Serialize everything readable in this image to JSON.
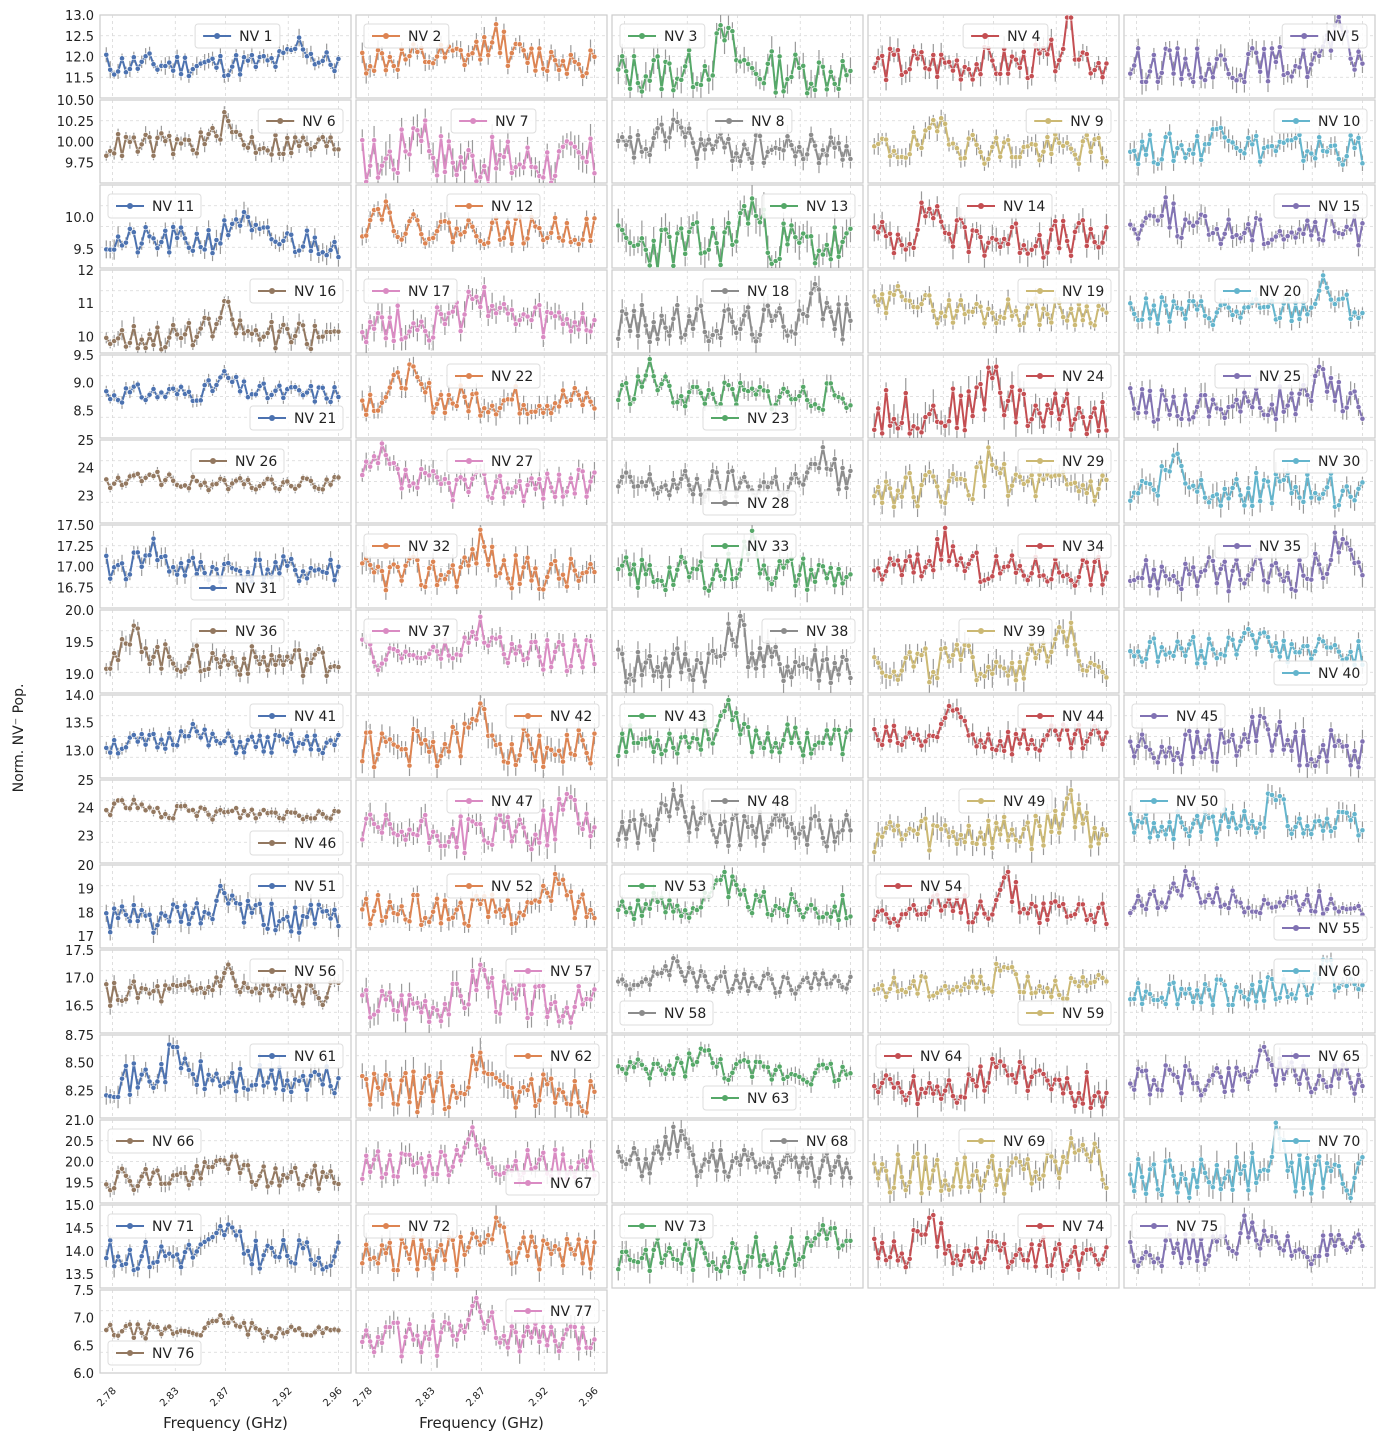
{
  "figure": {
    "ylabel": "Norm. NV⁻ Pop.",
    "xlabel": "Frequency (GHz)",
    "x_ticks": [
      "2.78",
      "2.83",
      "2.87",
      "2.92",
      "2.96"
    ],
    "n_points": 60,
    "x_range": [
      2.77,
      2.97
    ]
  },
  "colors": [
    "#4c72b0",
    "#dd8452",
    "#55a868",
    "#c44e52",
    "#8172b3",
    "#937860",
    "#da8bc3",
    "#8c8c8c",
    "#ccb974",
    "#64b5cd"
  ],
  "chart_data": {
    "type": "line",
    "layout": "77 small-multiple panels, 5 columns x 16 rows",
    "errorbars": true,
    "grid": true,
    "note_values": "per-panel values are estimated from the figure as peak frequency (GHz) on a noisy baseline",
    "panels": [
      {
        "name": "NV 1",
        "yticks": [
          "11.5",
          "12.0",
          "12.5",
          "13.0"
        ],
        "ylim": [
          11.0,
          13.0
        ],
        "base": 11.8,
        "amp": 0.7,
        "peak": 2.93,
        "legend": "top-center"
      },
      {
        "name": "NV 2",
        "yticks": [],
        "ylim": [
          0,
          1
        ],
        "base": 0.45,
        "amp": 0.45,
        "peak": 2.88,
        "legend": "top-left"
      },
      {
        "name": "NV 3",
        "yticks": [],
        "ylim": [
          0,
          1
        ],
        "base": 0.3,
        "amp": 0.6,
        "peak": 2.86,
        "legend": "top-left"
      },
      {
        "name": "NV 4",
        "yticks": [],
        "ylim": [
          0,
          1
        ],
        "base": 0.4,
        "amp": 0.5,
        "peak": 2.93,
        "legend": "top-center"
      },
      {
        "name": "NV 5",
        "yticks": [],
        "ylim": [
          0,
          1
        ],
        "base": 0.4,
        "amp": 0.5,
        "peak": 2.94,
        "legend": "top-right"
      },
      {
        "name": "NV 6",
        "yticks": [
          "9.75",
          "10.00",
          "10.25",
          "10.50"
        ],
        "ylim": [
          9.5,
          10.5
        ],
        "base": 9.95,
        "amp": 0.35,
        "peak": 2.87,
        "legend": "top-right"
      },
      {
        "name": "NV 7",
        "yticks": [],
        "ylim": [
          0,
          1
        ],
        "base": 0.25,
        "amp": 0.7,
        "peak": 2.82,
        "legend": "top-center"
      },
      {
        "name": "NV 8",
        "yticks": [],
        "ylim": [
          0,
          1
        ],
        "base": 0.4,
        "amp": 0.45,
        "peak": 2.82,
        "legend": "top-center"
      },
      {
        "name": "NV 9",
        "yticks": [],
        "ylim": [
          0,
          1
        ],
        "base": 0.4,
        "amp": 0.45,
        "peak": 2.83,
        "legend": "top-right"
      },
      {
        "name": "NV 10",
        "yticks": [],
        "ylim": [
          0,
          1
        ],
        "base": 0.4,
        "amp": 0.45,
        "peak": 2.85,
        "legend": "top-right"
      },
      {
        "name": "NV 11",
        "yticks": [
          "9.5",
          "10.0"
        ],
        "ylim": [
          9.2,
          10.5
        ],
        "base": 9.6,
        "amp": 0.55,
        "peak": 2.88,
        "legend": "top-left"
      },
      {
        "name": "NV 12",
        "yticks": [],
        "ylim": [
          0,
          1
        ],
        "base": 0.45,
        "amp": 0.4,
        "peak": 2.79,
        "legend": "top-center"
      },
      {
        "name": "NV 13",
        "yticks": [],
        "ylim": [
          0,
          1
        ],
        "base": 0.25,
        "amp": 0.7,
        "peak": 2.88,
        "legend": "top-right"
      },
      {
        "name": "NV 14",
        "yticks": [],
        "ylim": [
          0,
          1
        ],
        "base": 0.35,
        "amp": 0.55,
        "peak": 2.82,
        "legend": "top-center"
      },
      {
        "name": "NV 15",
        "yticks": [],
        "ylim": [
          0,
          1
        ],
        "base": 0.45,
        "amp": 0.45,
        "peak": 2.8,
        "legend": "top-right"
      },
      {
        "name": "NV 16",
        "yticks": [
          "10",
          "11",
          "12"
        ],
        "ylim": [
          9.5,
          12.0
        ],
        "base": 10.0,
        "amp": 1.0,
        "peak": 2.87,
        "legend": "top-right"
      },
      {
        "name": "NV 17",
        "yticks": [],
        "ylim": [
          0,
          1
        ],
        "base": 0.35,
        "amp": 0.55,
        "peak": 2.87,
        "legend": "top-left"
      },
      {
        "name": "NV 18",
        "yticks": [],
        "ylim": [
          0,
          1
        ],
        "base": 0.35,
        "amp": 0.55,
        "peak": 2.93,
        "legend": "top-center"
      },
      {
        "name": "NV 19",
        "yticks": [],
        "ylim": [
          0,
          1
        ],
        "base": 0.5,
        "amp": 0.4,
        "peak": 2.8,
        "legend": "top-right"
      },
      {
        "name": "NV 20",
        "yticks": [],
        "ylim": [
          0,
          1
        ],
        "base": 0.5,
        "amp": 0.4,
        "peak": 2.93,
        "legend": "top-center"
      },
      {
        "name": "NV 21",
        "yticks": [
          "8.5",
          "9.0",
          "9.5"
        ],
        "ylim": [
          8.0,
          9.5
        ],
        "base": 8.8,
        "amp": 0.4,
        "peak": 2.87,
        "legend": "bottom-right"
      },
      {
        "name": "NV 22",
        "yticks": [],
        "ylim": [
          0,
          1
        ],
        "base": 0.45,
        "amp": 0.45,
        "peak": 2.81,
        "legend": "top-center"
      },
      {
        "name": "NV 23",
        "yticks": [],
        "ylim": [
          0,
          1
        ],
        "base": 0.5,
        "amp": 0.4,
        "peak": 2.8,
        "legend": "bottom-center"
      },
      {
        "name": "NV 24",
        "yticks": [],
        "ylim": [
          0,
          1
        ],
        "base": 0.3,
        "amp": 0.65,
        "peak": 2.87,
        "legend": "top-right"
      },
      {
        "name": "NV 25",
        "yticks": [],
        "ylim": [
          0,
          1
        ],
        "base": 0.4,
        "amp": 0.5,
        "peak": 2.93,
        "legend": "top-center"
      },
      {
        "name": "NV 26",
        "yticks": [
          "23",
          "24",
          "25"
        ],
        "ylim": [
          22.0,
          25.0
        ],
        "base": 23.4,
        "amp": 0.6,
        "peak": 2.81,
        "legend": "top-center"
      },
      {
        "name": "NV 27",
        "yticks": [],
        "ylim": [
          0,
          1
        ],
        "base": 0.45,
        "amp": 0.45,
        "peak": 2.79,
        "legend": "top-center"
      },
      {
        "name": "NV 28",
        "yticks": [],
        "ylim": [
          0,
          1
        ],
        "base": 0.45,
        "amp": 0.45,
        "peak": 2.94,
        "legend": "bottom-center"
      },
      {
        "name": "NV 29",
        "yticks": [],
        "ylim": [
          0,
          1
        ],
        "base": 0.4,
        "amp": 0.5,
        "peak": 2.87,
        "legend": "top-right"
      },
      {
        "name": "NV 30",
        "yticks": [],
        "ylim": [
          0,
          1
        ],
        "base": 0.4,
        "amp": 0.5,
        "peak": 2.81,
        "legend": "top-right"
      },
      {
        "name": "NV 31",
        "yticks": [
          "16.75",
          "17.00",
          "17.25",
          "17.50"
        ],
        "ylim": [
          16.5,
          17.5
        ],
        "base": 16.95,
        "amp": 0.4,
        "peak": 2.81,
        "legend": "bottom-center"
      },
      {
        "name": "NV 32",
        "yticks": [],
        "ylim": [
          0,
          1
        ],
        "base": 0.4,
        "amp": 0.5,
        "peak": 2.87,
        "legend": "top-left"
      },
      {
        "name": "NV 33",
        "yticks": [],
        "ylim": [
          0,
          1
        ],
        "base": 0.4,
        "amp": 0.5,
        "peak": 2.88,
        "legend": "top-center"
      },
      {
        "name": "NV 34",
        "yticks": [],
        "ylim": [
          0,
          1
        ],
        "base": 0.45,
        "amp": 0.45,
        "peak": 2.83,
        "legend": "top-right"
      },
      {
        "name": "NV 35",
        "yticks": [],
        "ylim": [
          0,
          1
        ],
        "base": 0.4,
        "amp": 0.5,
        "peak": 2.94,
        "legend": "top-center"
      },
      {
        "name": "NV 36",
        "yticks": [
          "19.0",
          "19.5",
          "20.0"
        ],
        "ylim": [
          18.7,
          20.0
        ],
        "base": 19.2,
        "amp": 0.55,
        "peak": 2.8,
        "legend": "top-center"
      },
      {
        "name": "NV 37",
        "yticks": [],
        "ylim": [
          0,
          1
        ],
        "base": 0.45,
        "amp": 0.45,
        "peak": 2.87,
        "legend": "top-left"
      },
      {
        "name": "NV 38",
        "yticks": [],
        "ylim": [
          0,
          1
        ],
        "base": 0.35,
        "amp": 0.6,
        "peak": 2.87,
        "legend": "top-right"
      },
      {
        "name": "NV 39",
        "yticks": [],
        "ylim": [
          0,
          1
        ],
        "base": 0.35,
        "amp": 0.55,
        "peak": 2.93,
        "legend": "top-center"
      },
      {
        "name": "NV 40",
        "yticks": [],
        "ylim": [
          0,
          1
        ],
        "base": 0.5,
        "amp": 0.4,
        "peak": 2.87,
        "legend": "bottom-right"
      },
      {
        "name": "NV 41",
        "yticks": [
          "13.0",
          "13.5",
          "14.0"
        ],
        "ylim": [
          12.5,
          14.0
        ],
        "base": 13.1,
        "amp": 0.45,
        "peak": 2.84,
        "legend": "top-right"
      },
      {
        "name": "NV 42",
        "yticks": [],
        "ylim": [
          0,
          1
        ],
        "base": 0.35,
        "amp": 0.55,
        "peak": 2.87,
        "legend": "top-right"
      },
      {
        "name": "NV 43",
        "yticks": [],
        "ylim": [
          0,
          1
        ],
        "base": 0.45,
        "amp": 0.45,
        "peak": 2.86,
        "legend": "top-left"
      },
      {
        "name": "NV 44",
        "yticks": [],
        "ylim": [
          0,
          1
        ],
        "base": 0.45,
        "amp": 0.45,
        "peak": 2.84,
        "legend": "top-right"
      },
      {
        "name": "NV 45",
        "yticks": [],
        "ylim": [
          0,
          1
        ],
        "base": 0.35,
        "amp": 0.55,
        "peak": 2.88,
        "legend": "top-left"
      },
      {
        "name": "NV 46",
        "yticks": [
          "23",
          "24",
          "25"
        ],
        "ylim": [
          22.0,
          25.0
        ],
        "base": 23.8,
        "amp": 0.6,
        "peak": 2.79,
        "legend": "bottom-right"
      },
      {
        "name": "NV 47",
        "yticks": [],
        "ylim": [
          0,
          1
        ],
        "base": 0.35,
        "amp": 0.55,
        "peak": 2.94,
        "legend": "top-center"
      },
      {
        "name": "NV 48",
        "yticks": [],
        "ylim": [
          0,
          1
        ],
        "base": 0.4,
        "amp": 0.5,
        "peak": 2.82,
        "legend": "top-center"
      },
      {
        "name": "NV 49",
        "yticks": [],
        "ylim": [
          0,
          1
        ],
        "base": 0.35,
        "amp": 0.55,
        "peak": 2.93,
        "legend": "top-center"
      },
      {
        "name": "NV 50",
        "yticks": [],
        "ylim": [
          0,
          1
        ],
        "base": 0.45,
        "amp": 0.45,
        "peak": 2.89,
        "legend": "top-left"
      },
      {
        "name": "NV 51",
        "yticks": [
          "17",
          "18",
          "19",
          "20"
        ],
        "ylim": [
          16.5,
          20.0
        ],
        "base": 17.7,
        "amp": 1.5,
        "peak": 2.87,
        "legend": "top-right"
      },
      {
        "name": "NV 52",
        "yticks": [],
        "ylim": [
          0,
          1
        ],
        "base": 0.45,
        "amp": 0.45,
        "peak": 2.93,
        "legend": "top-center"
      },
      {
        "name": "NV 53",
        "yticks": [],
        "ylim": [
          0,
          1
        ],
        "base": 0.5,
        "amp": 0.4,
        "peak": 2.86,
        "legend": "top-left"
      },
      {
        "name": "NV 54",
        "yticks": [],
        "ylim": [
          0,
          1
        ],
        "base": 0.45,
        "amp": 0.45,
        "peak": 2.88,
        "legend": "top-left"
      },
      {
        "name": "NV 55",
        "yticks": [],
        "ylim": [
          0,
          1
        ],
        "base": 0.55,
        "amp": 0.35,
        "peak": 2.82,
        "legend": "bottom-right"
      },
      {
        "name": "NV 56",
        "yticks": [
          "16.5",
          "17.0",
          "17.5"
        ],
        "ylim": [
          16.0,
          17.5
        ],
        "base": 16.7,
        "amp": 0.55,
        "peak": 2.87,
        "legend": "top-right"
      },
      {
        "name": "NV 57",
        "yticks": [],
        "ylim": [
          0,
          1
        ],
        "base": 0.35,
        "amp": 0.55,
        "peak": 2.87,
        "legend": "top-right"
      },
      {
        "name": "NV 58",
        "yticks": [],
        "ylim": [
          0,
          1
        ],
        "base": 0.6,
        "amp": 0.3,
        "peak": 2.82,
        "legend": "bottom-left"
      },
      {
        "name": "NV 59",
        "yticks": [],
        "ylim": [
          0,
          1
        ],
        "base": 0.55,
        "amp": 0.35,
        "peak": 2.88,
        "legend": "bottom-right"
      },
      {
        "name": "NV 60",
        "yticks": [],
        "ylim": [
          0,
          1
        ],
        "base": 0.5,
        "amp": 0.4,
        "peak": 2.93,
        "legend": "top-right"
      },
      {
        "name": "NV 61",
        "yticks": [
          "8.25",
          "8.50",
          "8.75"
        ],
        "ylim": [
          8.0,
          8.75
        ],
        "base": 8.33,
        "amp": 0.35,
        "peak": 2.83,
        "legend": "top-right"
      },
      {
        "name": "NV 62",
        "yticks": [],
        "ylim": [
          0,
          1
        ],
        "base": 0.3,
        "amp": 0.6,
        "peak": 2.87,
        "legend": "top-right"
      },
      {
        "name": "NV 63",
        "yticks": [],
        "ylim": [
          0,
          1
        ],
        "base": 0.55,
        "amp": 0.35,
        "peak": 2.84,
        "legend": "bottom-center"
      },
      {
        "name": "NV 64",
        "yticks": [],
        "ylim": [
          0,
          1
        ],
        "base": 0.35,
        "amp": 0.55,
        "peak": 2.88,
        "legend": "top-left"
      },
      {
        "name": "NV 65",
        "yticks": [],
        "ylim": [
          0,
          1
        ],
        "base": 0.45,
        "amp": 0.45,
        "peak": 2.88,
        "legend": "top-right"
      },
      {
        "name": "NV 66",
        "yticks": [
          "19.5",
          "20.0",
          "20.5",
          "21.0"
        ],
        "ylim": [
          19.0,
          21.0
        ],
        "base": 19.6,
        "amp": 0.7,
        "peak": 2.87,
        "legend": "top-left"
      },
      {
        "name": "NV 67",
        "yticks": [],
        "ylim": [
          0,
          1
        ],
        "base": 0.45,
        "amp": 0.45,
        "peak": 2.86,
        "legend": "bottom-right"
      },
      {
        "name": "NV 68",
        "yticks": [],
        "ylim": [
          0,
          1
        ],
        "base": 0.45,
        "amp": 0.45,
        "peak": 2.82,
        "legend": "top-right"
      },
      {
        "name": "NV 69",
        "yticks": [],
        "ylim": [
          0,
          1
        ],
        "base": 0.35,
        "amp": 0.6,
        "peak": 2.94,
        "legend": "top-center"
      },
      {
        "name": "NV 70",
        "yticks": [],
        "ylim": [
          0,
          1
        ],
        "base": 0.3,
        "amp": 0.6,
        "peak": 2.89,
        "legend": "top-right"
      },
      {
        "name": "NV 71",
        "yticks": [
          "13.5",
          "14.0",
          "14.5",
          "15.0"
        ],
        "ylim": [
          13.2,
          15.0
        ],
        "base": 13.9,
        "amp": 0.8,
        "peak": 2.87,
        "legend": "top-left"
      },
      {
        "name": "NV 72",
        "yticks": [],
        "ylim": [
          0,
          1
        ],
        "base": 0.4,
        "amp": 0.5,
        "peak": 2.88,
        "legend": "top-left"
      },
      {
        "name": "NV 73",
        "yticks": [],
        "ylim": [
          0,
          1
        ],
        "base": 0.4,
        "amp": 0.5,
        "peak": 2.94,
        "legend": "top-left"
      },
      {
        "name": "NV 74",
        "yticks": [],
        "ylim": [
          0,
          1
        ],
        "base": 0.4,
        "amp": 0.5,
        "peak": 2.82,
        "legend": "top-right"
      },
      {
        "name": "NV 75",
        "yticks": [],
        "ylim": [
          0,
          1
        ],
        "base": 0.45,
        "amp": 0.45,
        "peak": 2.87,
        "legend": "top-left"
      },
      {
        "name": "NV 76",
        "yticks": [
          "6.0",
          "6.5",
          "7.0",
          "7.5"
        ],
        "ylim": [
          6.0,
          7.5
        ],
        "base": 6.75,
        "amp": 0.3,
        "peak": 2.87,
        "legend": "bottom-left"
      },
      {
        "name": "NV 77",
        "yticks": [],
        "ylim": [
          0,
          1
        ],
        "base": 0.4,
        "amp": 0.5,
        "peak": 2.87,
        "legend": "top-right"
      }
    ]
  }
}
